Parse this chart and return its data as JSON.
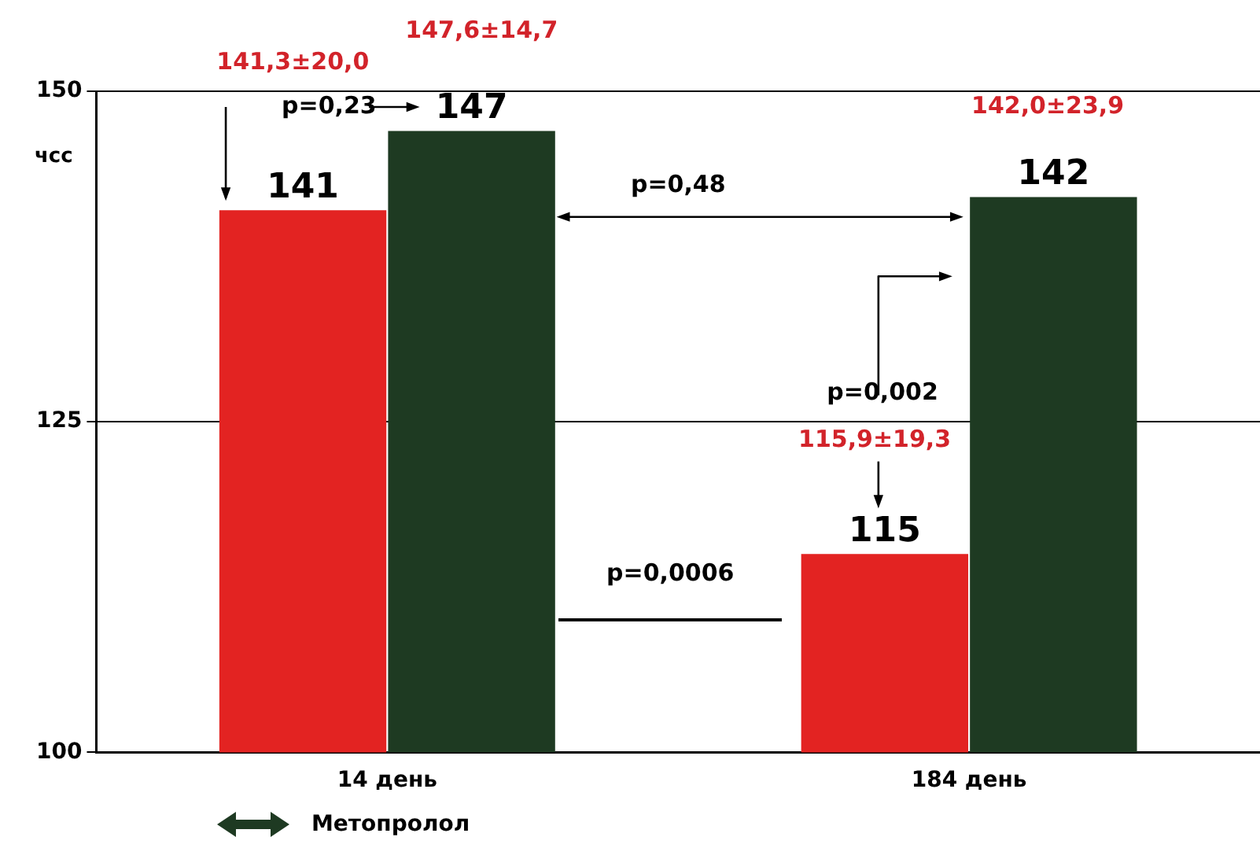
{
  "chart_data": {
    "type": "bar",
    "ylabel": "чсс",
    "categories": [
      "14 день",
      "184 день"
    ],
    "series": [
      {
        "color": "#e32322",
        "values": [
          141,
          115
        ]
      },
      {
        "name": "Метопролол",
        "color": "#1e3a22",
        "values": [
          147,
          142
        ]
      }
    ],
    "data_labels": true,
    "ylim": [
      100,
      150
    ],
    "yticks": [
      100,
      125,
      150
    ],
    "grid": "y",
    "legend": "bottom",
    "annotations": [
      "141,3±20,0",
      "147,6±14,7",
      "p=0,23",
      "p=0,48",
      "142,0±23,9",
      "p=0,002",
      "115,9±19,3",
      "p=0,0006"
    ]
  }
}
